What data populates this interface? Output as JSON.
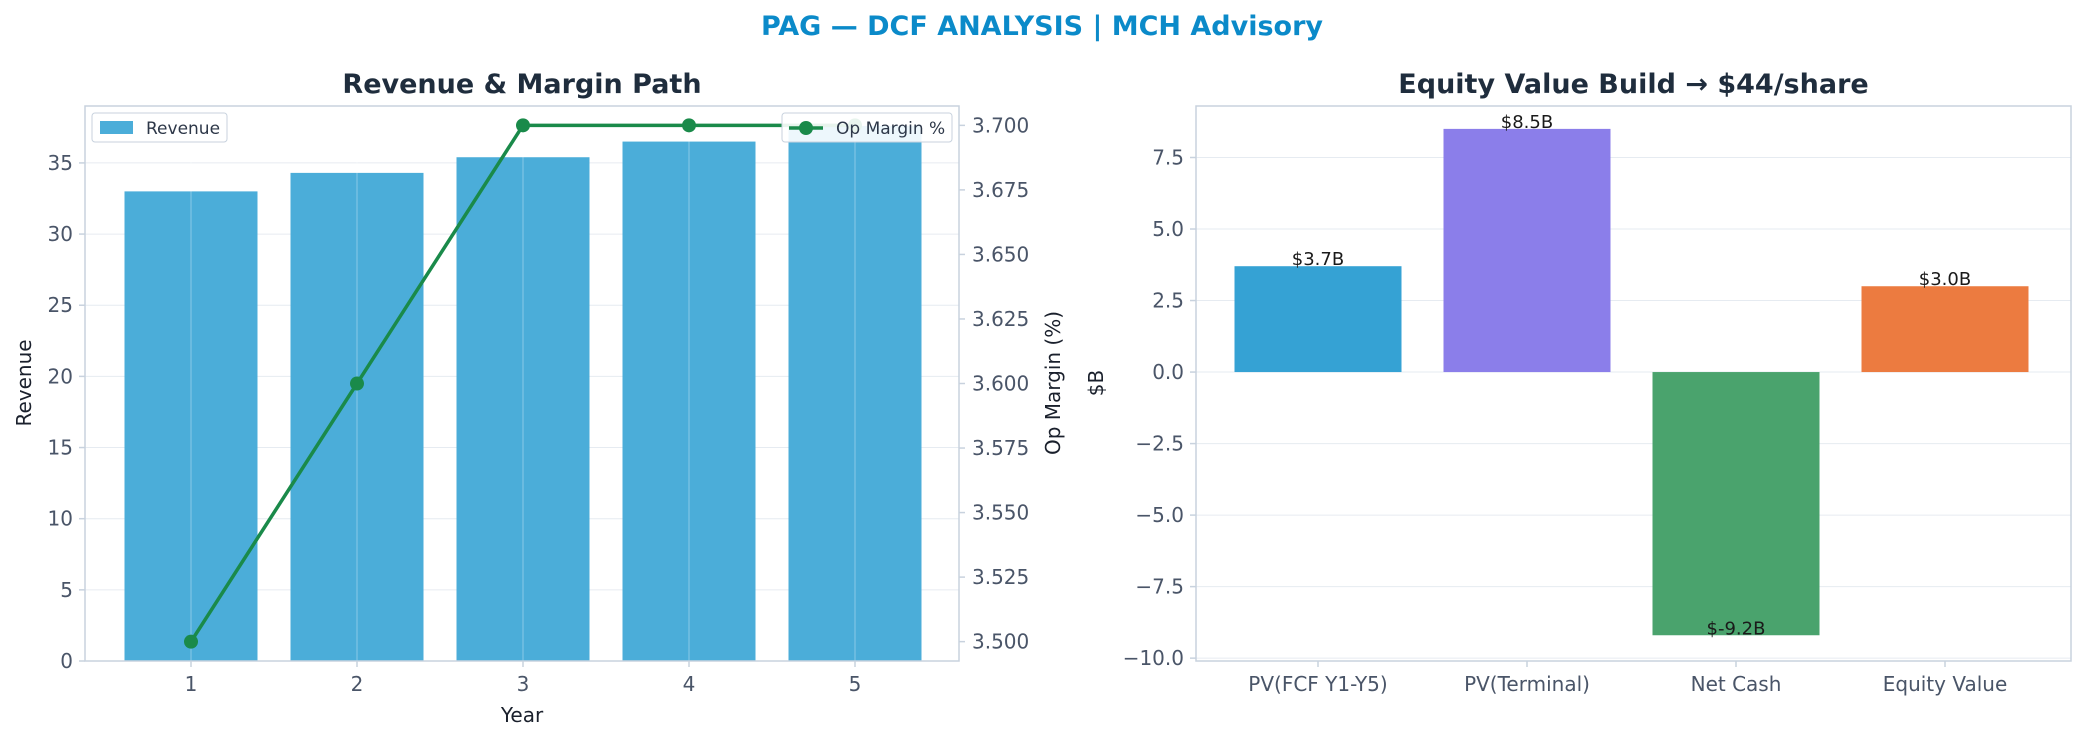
{
  "title": "PAG — DCF ANALYSIS | MCH Advisory",
  "colors": {
    "title": "#0b8ac9",
    "revenue_bar": "#4badd9",
    "margin_line": "#1a8a4a",
    "axis": "#c8d2de",
    "grid": "#e6ebf1"
  },
  "chart_data": [
    {
      "type": "bar",
      "title": "Revenue & Margin Path",
      "xlabel": "Year",
      "ylabel": "Revenue",
      "y2label": "Op Margin (%)",
      "categories": [
        "1",
        "2",
        "3",
        "4",
        "5"
      ],
      "ylim": [
        0,
        39
      ],
      "y2lim": [
        3.4925,
        3.7075
      ],
      "yticks": [
        "0",
        "5",
        "10",
        "15",
        "20",
        "25",
        "30",
        "35"
      ],
      "y2ticks": [
        "3.500",
        "3.525",
        "3.550",
        "3.575",
        "3.600",
        "3.625",
        "3.650",
        "3.675",
        "3.700"
      ],
      "grid": true,
      "series": [
        {
          "name": "Revenue",
          "type": "bar",
          "values": [
            33.0,
            34.3,
            35.4,
            36.5,
            37.6
          ]
        },
        {
          "name": "Op Margin %",
          "type": "line",
          "axis": "right",
          "values": [
            3.5,
            3.6,
            3.7,
            3.7,
            3.7
          ]
        }
      ],
      "legend": [
        {
          "label": "Revenue",
          "placement": "top-left"
        },
        {
          "label": "Op Margin %",
          "placement": "top-right"
        }
      ]
    },
    {
      "type": "bar",
      "title": "Equity Value Build → $44/share",
      "xlabel": "",
      "ylabel": "$B",
      "categories": [
        "PV(FCF Y1-Y5)",
        "PV(Terminal)",
        "Net Cash",
        "Equity Value"
      ],
      "values": [
        3.7,
        8.5,
        -9.2,
        3.0
      ],
      "data_labels": [
        "$3.7B",
        "$8.5B",
        "$-9.2B",
        "$3.0B"
      ],
      "colors": [
        "#35a2d4",
        "#8b7eea",
        "#4aa36d",
        "#ec7b40"
      ],
      "ylim": [
        -10.1,
        9.3
      ],
      "yticks": [
        "−10.0",
        "−7.5",
        "−5.0",
        "−2.5",
        "0.0",
        "2.5",
        "5.0",
        "7.5"
      ],
      "grid": true
    }
  ]
}
